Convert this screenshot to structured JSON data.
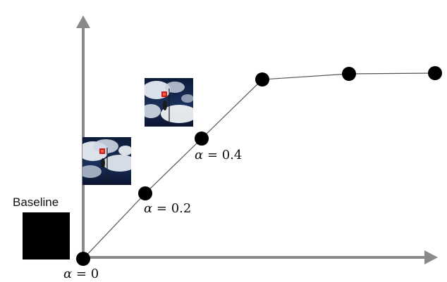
{
  "baseline_label": "Baseline",
  "axis_color": "#8a8a8a",
  "curve_color": "#555555",
  "point_color": "#000000",
  "alpha_labels": [
    {
      "symbol": "α",
      "value": "0"
    },
    {
      "symbol": "α",
      "value": "0.2"
    },
    {
      "symbol": "α",
      "value": "0.4"
    }
  ],
  "images": [
    {
      "name": "baseline-image",
      "desc": "solid black square"
    },
    {
      "name": "cloud-image-alpha-0.2",
      "desc": "cloudy sky photo with red marker"
    },
    {
      "name": "cloud-image-alpha-0.4",
      "desc": "cloudy sky photo with red marker"
    }
  ]
}
